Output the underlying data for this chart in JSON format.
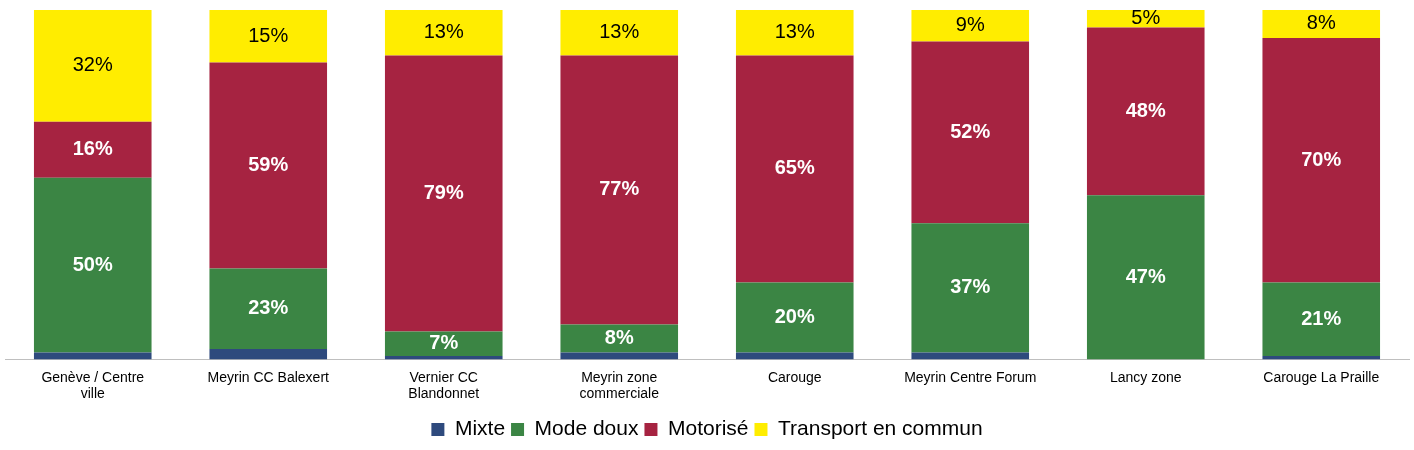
{
  "chart_data": {
    "type": "bar",
    "stacked": true,
    "categories": [
      "Genève / Centre ville",
      "Meyrin CC Balexert",
      "Vernier CC Blandonnet",
      "Meyrin zone commerciale",
      "Carouge",
      "Meyrin Centre Forum",
      "Lancy zone",
      "Carouge La Praille"
    ],
    "ylim": [
      0,
      100
    ],
    "tick_labels": "x",
    "grid": false,
    "legend": "bottom",
    "series": [
      {
        "name": "Mixte",
        "color": "#2e4a7d",
        "values": [
          2,
          3,
          1,
          2,
          2,
          2,
          0,
          1
        ],
        "value_labels": [
          null,
          null,
          null,
          null,
          null,
          null,
          null,
          null
        ]
      },
      {
        "name": "Mode doux",
        "color": "#3b8544",
        "values": [
          50,
          23,
          7,
          8,
          20,
          37,
          47,
          21
        ],
        "value_labels": [
          "50%",
          "23%",
          "7%",
          "8%",
          "20%",
          "37%",
          "47%",
          "21%"
        ]
      },
      {
        "name": "Motorisé",
        "color": "#a62341",
        "values": [
          16,
          59,
          79,
          77,
          65,
          52,
          48,
          70
        ],
        "value_labels": [
          "16%",
          "59%",
          "79%",
          "77%",
          "65%",
          "52%",
          "48%",
          "70%"
        ]
      },
      {
        "name": "Transport en commun",
        "color": "#ffed00",
        "values": [
          32,
          15,
          13,
          13,
          13,
          9,
          5,
          8
        ],
        "value_labels": [
          "32%",
          "15%",
          "13%",
          "13%",
          "13%",
          "9%",
          "5%",
          "8%"
        ]
      }
    ]
  }
}
